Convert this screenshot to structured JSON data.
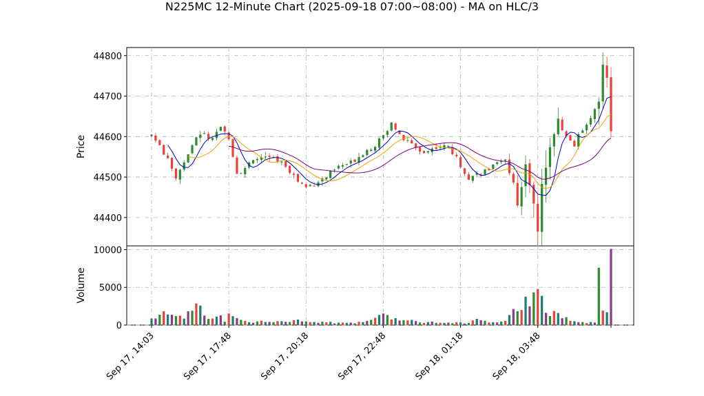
{
  "chart_data": {
    "type": "candlestick",
    "title": "N225MC 12-Minute Chart (2025-09-18 07:00~08:00) - MA on HLC/3",
    "price_panel": {
      "ylabel": "Price",
      "ylim": [
        44330,
        44820
      ],
      "yticks": [
        44400,
        44500,
        44600,
        44700,
        44800
      ],
      "grid": true
    },
    "volume_panel": {
      "ylabel": "Volume",
      "ylim": [
        0,
        10500
      ],
      "yticks": [
        0,
        5000,
        10000
      ],
      "grid": true
    },
    "x_ticks": [
      {
        "label": "Sep 17, 14:03",
        "index": 0
      },
      {
        "label": "Sep 17, 17:48",
        "index": 19
      },
      {
        "label": "Sep 17, 20:18",
        "index": 38
      },
      {
        "label": "Sep 17, 22:48",
        "index": 57
      },
      {
        "label": "Sep 18, 01:18",
        "index": 76
      },
      {
        "label": "Sep 18, 03:48",
        "index": 95
      }
    ],
    "candle_count": 114,
    "colors": {
      "up": "#2e8b2e",
      "down": "#e8433a",
      "ma_fast": "#0000cc",
      "ma_mid": "#f0a000",
      "ma_slow": "#800080",
      "vol_a": "#1a7f70",
      "vol_b": "#8b3a8b"
    },
    "close_anchors": [
      [
        0,
        44605
      ],
      [
        3,
        44560
      ],
      [
        6,
        44500
      ],
      [
        9,
        44560
      ],
      [
        12,
        44610
      ],
      [
        15,
        44590
      ],
      [
        17,
        44620
      ],
      [
        19,
        44600
      ],
      [
        21,
        44510
      ],
      [
        24,
        44530
      ],
      [
        27,
        44550
      ],
      [
        30,
        44545
      ],
      [
        33,
        44530
      ],
      [
        36,
        44490
      ],
      [
        38,
        44475
      ],
      [
        40,
        44485
      ],
      [
        43,
        44500
      ],
      [
        46,
        44525
      ],
      [
        49,
        44535
      ],
      [
        52,
        44560
      ],
      [
        55,
        44580
      ],
      [
        57,
        44600
      ],
      [
        59,
        44640
      ],
      [
        61,
        44600
      ],
      [
        64,
        44580
      ],
      [
        67,
        44560
      ],
      [
        70,
        44575
      ],
      [
        73,
        44575
      ],
      [
        76,
        44530
      ],
      [
        78,
        44500
      ],
      [
        81,
        44510
      ],
      [
        84,
        44525
      ],
      [
        87,
        44540
      ],
      [
        89,
        44490
      ],
      [
        90,
        44430
      ],
      [
        92,
        44530
      ],
      [
        94,
        44440
      ],
      [
        95,
        44360
      ],
      [
        96,
        44480
      ],
      [
        98,
        44580
      ],
      [
        100,
        44640
      ],
      [
        102,
        44600
      ],
      [
        104,
        44580
      ],
      [
        106,
        44620
      ],
      [
        108,
        44650
      ],
      [
        110,
        44680
      ],
      [
        111,
        44780
      ],
      [
        112,
        44750
      ],
      [
        113,
        44610
      ]
    ],
    "volume_anchors": [
      [
        0,
        900
      ],
      [
        4,
        1500
      ],
      [
        8,
        1200
      ],
      [
        11,
        2400
      ],
      [
        14,
        1000
      ],
      [
        16,
        1600
      ],
      [
        18,
        600
      ],
      [
        20,
        1800
      ],
      [
        22,
        700
      ],
      [
        25,
        500
      ],
      [
        30,
        350
      ],
      [
        35,
        600
      ],
      [
        40,
        400
      ],
      [
        45,
        300
      ],
      [
        50,
        350
      ],
      [
        55,
        700
      ],
      [
        57,
        1400
      ],
      [
        60,
        900
      ],
      [
        63,
        700
      ],
      [
        66,
        500
      ],
      [
        70,
        350
      ],
      [
        75,
        300
      ],
      [
        78,
        350
      ],
      [
        80,
        700
      ],
      [
        84,
        300
      ],
      [
        87,
        400
      ],
      [
        89,
        2600
      ],
      [
        91,
        3000
      ],
      [
        93,
        3800
      ],
      [
        95,
        3600
      ],
      [
        97,
        2000
      ],
      [
        99,
        1500
      ],
      [
        101,
        1200
      ],
      [
        103,
        800
      ],
      [
        105,
        500
      ],
      [
        107,
        350
      ],
      [
        109,
        300
      ],
      [
        110,
        7600
      ],
      [
        111,
        2300
      ],
      [
        112,
        1400
      ],
      [
        113,
        10100
      ]
    ]
  }
}
